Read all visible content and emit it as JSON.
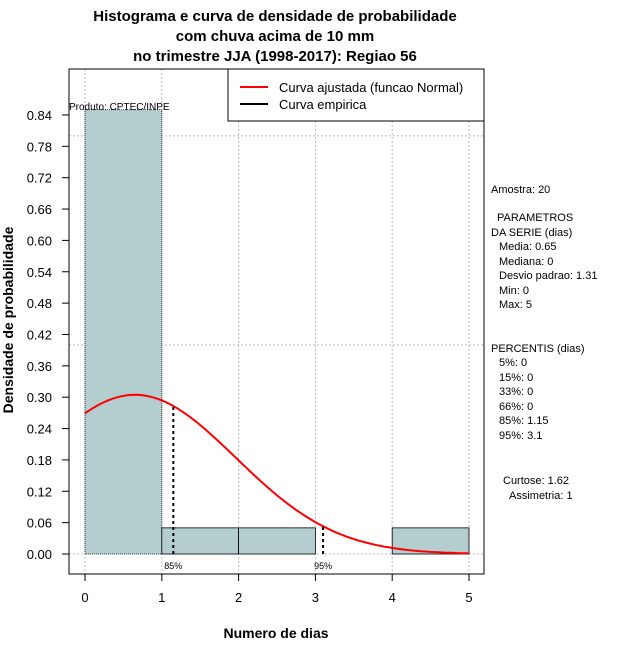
{
  "chart_data": {
    "type": "bar",
    "title": [
      "Histograma e curva de densidade de probabilidade",
      "com chuva acima de 10 mm",
      "no trimestre JJA (1998-2017): Regiao 56"
    ],
    "xlabel": "Numero de dias",
    "ylabel": "Densidade de probabilidade",
    "xlim": [
      0,
      5
    ],
    "ylim": [
      0,
      0.84
    ],
    "x_ticks": [
      "0",
      "1",
      "2",
      "3",
      "4",
      "5"
    ],
    "y_ticks": [
      "0.00",
      "0.06",
      "0.12",
      "0.18",
      "0.24",
      "0.30",
      "0.36",
      "0.42",
      "0.48",
      "0.54",
      "0.60",
      "0.66",
      "0.72",
      "0.78",
      "0.84"
    ],
    "bins": [
      [
        0,
        1
      ],
      [
        1,
        2
      ],
      [
        2,
        3
      ],
      [
        3,
        4
      ],
      [
        4,
        5
      ]
    ],
    "values": [
      0.85,
      0.05,
      0.05,
      0.0,
      0.05
    ],
    "bar_color": "#b4cecf",
    "curve": {
      "name": "Curva ajustada (funcao Normal)",
      "mean": 0.65,
      "sd": 1.31,
      "color": "#ff0000"
    },
    "empirical_legend": "Curva empirica",
    "percentile_markers": [
      {
        "label": "85%",
        "x": 1.15
      },
      {
        "label": "95%",
        "x": 3.1
      }
    ],
    "grid_y": [
      0.0,
      0.4,
      0.8
    ],
    "legend_placement": "top-right",
    "credit": "Produto: CPTEC/INPE"
  },
  "stats": {
    "amostra": "Amostra: 20",
    "param_title1": "PARAMETROS",
    "param_title2": "DA SERIE (dias)",
    "media": "Media: 0.65",
    "mediana": "Mediana: 0",
    "desvio": "Desvio padrao: 1.31",
    "min": "Min: 0",
    "max": "Max: 5",
    "perc_title": "PERCENTIS (dias)",
    "p5": "5%: 0",
    "p15": "15%: 0",
    "p33": "33%: 0",
    "p66": "66%: 0",
    "p85": "85%: 1.15",
    "p95": "95%: 3.1",
    "curtose": "Curtose: 1.62",
    "assimetria": "Assimetria: 1"
  }
}
